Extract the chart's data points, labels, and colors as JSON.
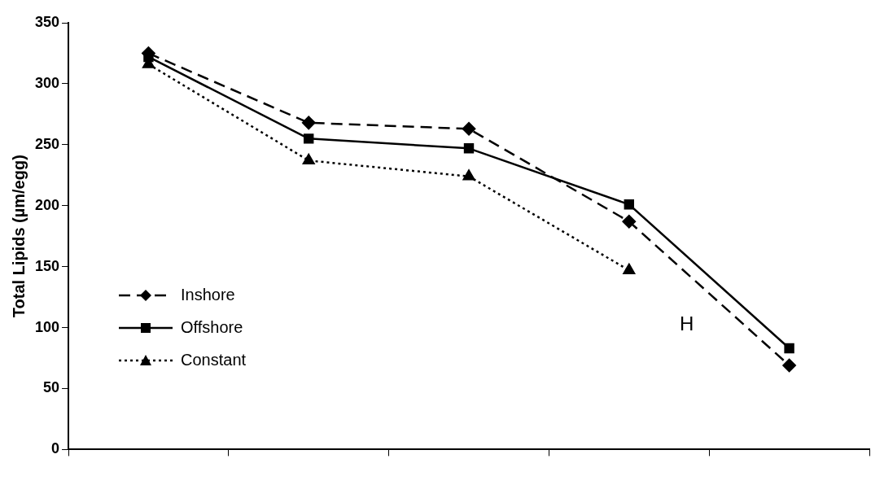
{
  "chart_data": {
    "type": "line",
    "ylabel": "Total Lipids (µm/egg)",
    "categories": [
      null,
      null,
      null,
      null,
      null
    ],
    "series": [
      {
        "name": "Inshore",
        "color": "#000000",
        "marker": "diamond",
        "line_style": "dashed",
        "values": [
          325,
          268,
          263,
          187,
          69
        ]
      },
      {
        "name": "Offshore",
        "color": "#000000",
        "marker": "square",
        "line_style": "solid",
        "values": [
          322,
          255,
          247,
          201,
          83
        ]
      },
      {
        "name": "Constant",
        "color": "#000000",
        "marker": "triangle",
        "line_style": "dotted",
        "values": [
          316,
          237,
          224,
          147,
          null
        ]
      }
    ],
    "ylim": [
      0,
      350
    ],
    "yticks": [
      0,
      50,
      100,
      150,
      200,
      250,
      300,
      350
    ],
    "grid": false,
    "legend": "bottom left",
    "annotations": [
      "H"
    ]
  }
}
